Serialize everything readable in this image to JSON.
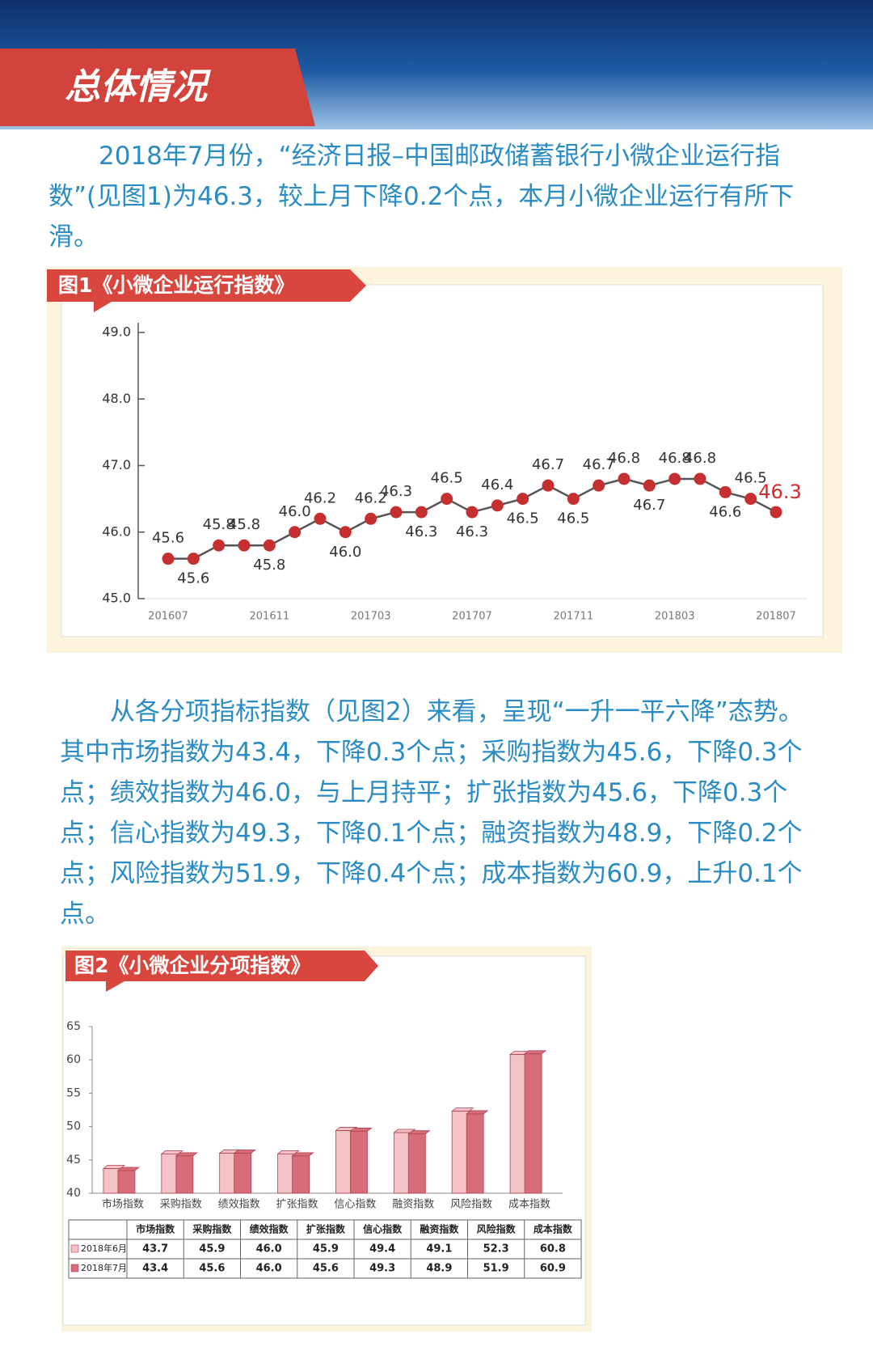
{
  "header": {
    "title": "总体情况"
  },
  "paragraphs": [
    "2018年7月份，“经济日报–中国邮政储蓄银行小微企业运行指数”(见图1)为46.3，较上月下降0.2个点，本月小微企业运行有所下滑。",
    "从各分项指标指数（见图2）来看，呈现“一升一平六降”态势。其中市场指数为43.4，下降0.3个点；采购指数为45.6，下降0.3个点；绩效指数为46.0，与上月持平；扩张指数为45.6，下降0.3个点；信心指数为49.3，下降0.1个点；融资指数为48.9，下降0.2个点；风险指数为51.9，下降0.4个点；成本指数为60.9，上升0.1个点。"
  ],
  "chart_data": [
    {
      "type": "line",
      "title": "图1《小微企业运行指数》",
      "categories": [
        "201607",
        null,
        null,
        null,
        "201611",
        null,
        null,
        null,
        "201703",
        null,
        null,
        null,
        "201707",
        null,
        null,
        null,
        "201711",
        null,
        null,
        null,
        "201803",
        null,
        null,
        null,
        "201807"
      ],
      "values": [
        45.6,
        45.6,
        45.8,
        45.8,
        45.8,
        46.0,
        46.2,
        46.0,
        46.2,
        46.3,
        46.3,
        46.5,
        46.3,
        46.4,
        46.5,
        46.7,
        46.5,
        46.7,
        46.8,
        46.7,
        46.8,
        46.8,
        46.6,
        46.5,
        46.3
      ],
      "value_labels": [
        "45.6",
        "45.6",
        "45.8",
        "45.8",
        "45.8",
        "46.0",
        "46.2",
        "46.0",
        "46.2",
        "46.3",
        "46.3",
        "46.5",
        "46.3",
        "46.4",
        "46.5",
        "46.7",
        "46.5",
        "46.7",
        "46.8",
        "46.7",
        "46.8",
        "46.8",
        "46.6",
        "46.5",
        "46.3"
      ],
      "color": "#c62f2f",
      "line_color": "#555555",
      "highlight_color": "#d42a2a",
      "ylim": [
        45,
        49
      ],
      "yticks": [
        {
          "value": 45,
          "label": "45.0"
        },
        {
          "value": 46,
          "label": "46.0"
        },
        {
          "value": 47,
          "label": "47.0"
        },
        {
          "value": 48,
          "label": "48.0"
        },
        {
          "value": 49,
          "label": "49.0"
        }
      ],
      "grid": false
    },
    {
      "type": "bar",
      "title": "图2《小微企业分项指数》",
      "categories": [
        "市场指数",
        "采购指数",
        "绩效指数",
        "扩张指数",
        "信心指数",
        "融资指数",
        "风险指数",
        "成本指数"
      ],
      "series": [
        {
          "name": "2018年6月",
          "color": "#f4c2c7",
          "values": [
            43.7,
            45.9,
            46.0,
            45.9,
            49.4,
            49.1,
            52.3,
            60.8
          ],
          "value_labels": [
            "43.7",
            "45.9",
            "46.0",
            "45.9",
            "49.4",
            "49.1",
            "52.3",
            "60.8"
          ]
        },
        {
          "name": "2018年7月",
          "color": "#d86d7a",
          "values": [
            43.4,
            45.6,
            46.0,
            45.6,
            49.3,
            48.9,
            51.9,
            60.9
          ],
          "value_labels": [
            "43.4",
            "45.6",
            "46.0",
            "45.6",
            "49.3",
            "48.9",
            "51.9",
            "60.9"
          ]
        }
      ],
      "ylim": [
        40,
        65
      ],
      "yticks": [
        40,
        45,
        50,
        55,
        60,
        65
      ],
      "grid": false
    }
  ]
}
